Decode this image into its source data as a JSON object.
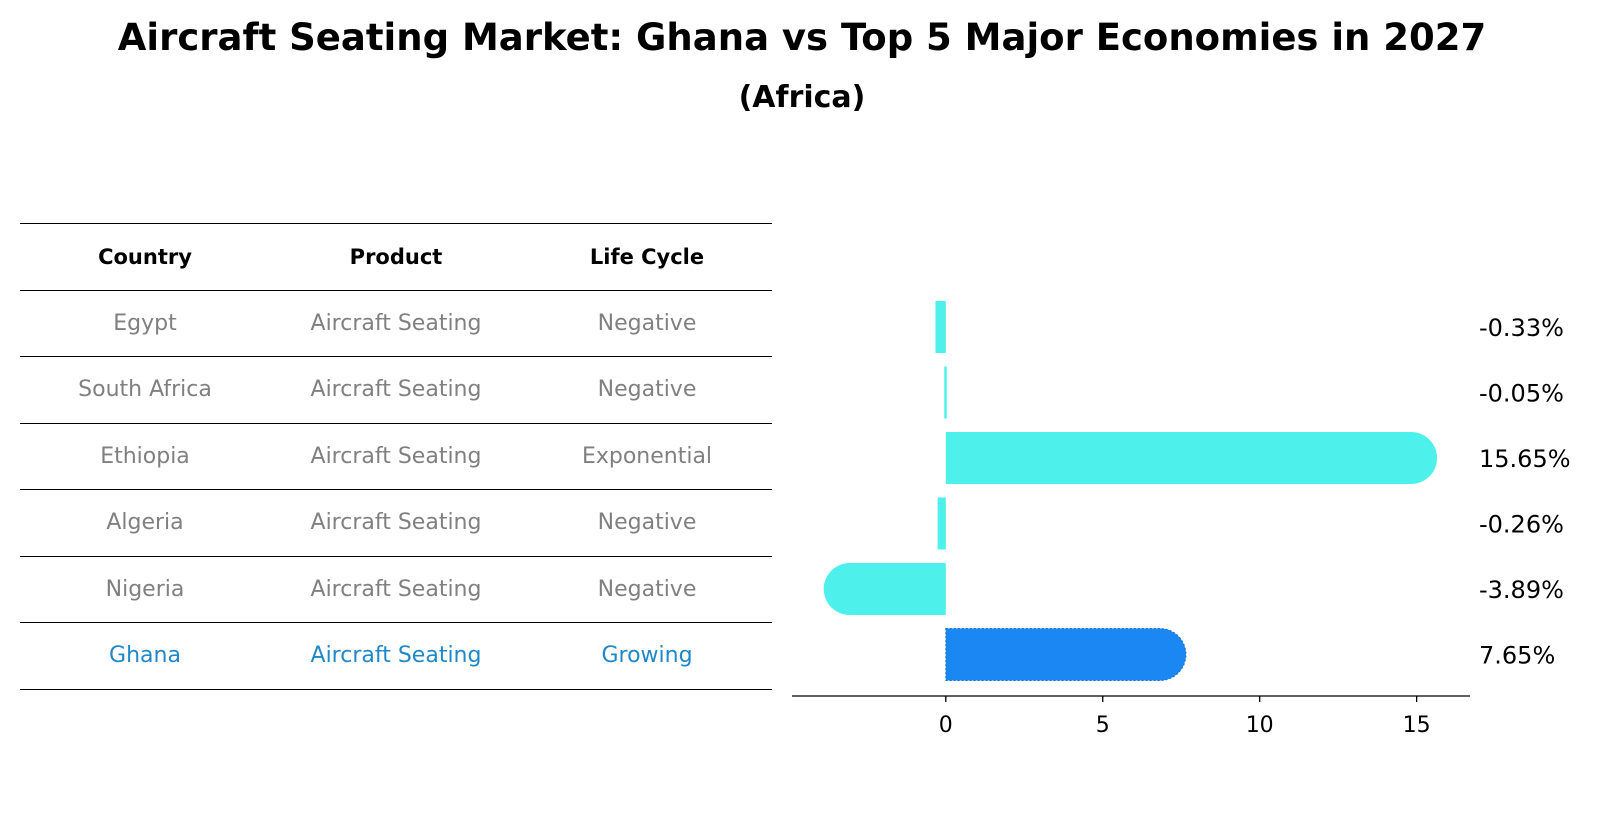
{
  "title": "Aircraft Seating Market: Ghana vs Top 5 Major Economies in 2027",
  "subtitle": "(Africa)",
  "table": {
    "headers": [
      "Country",
      "Product",
      "Life Cycle"
    ],
    "rows": [
      [
        "Egypt",
        "Aircraft Seating",
        "Negative"
      ],
      [
        "South Africa",
        "Aircraft Seating",
        "Negative"
      ],
      [
        "Ethiopia",
        "Aircraft Seating",
        "Exponential"
      ],
      [
        "Algeria",
        "Aircraft Seating",
        "Negative"
      ],
      [
        "Nigeria",
        "Aircraft Seating",
        "Negative"
      ],
      [
        "Ghana",
        "Aircraft Seating",
        "Growing"
      ]
    ]
  },
  "chart_data": {
    "type": "bar",
    "orientation": "horizontal",
    "categories": [
      "Egypt",
      "South Africa",
      "Ethiopia",
      "Algeria",
      "Nigeria",
      "Ghana"
    ],
    "values": [
      -0.33,
      -0.05,
      15.65,
      -0.26,
      -3.89,
      7.65
    ],
    "value_labels": [
      "-0.33%",
      "-0.05%",
      "15.65%",
      "-0.26%",
      "-3.89%",
      "7.65%"
    ],
    "highlight": "Ghana",
    "xticks": [
      0,
      5,
      10,
      15
    ],
    "xlim": [
      -4.9,
      16.7
    ],
    "colors": {
      "default": "#4ef0eb",
      "highlight": "#1a87f2"
    }
  }
}
